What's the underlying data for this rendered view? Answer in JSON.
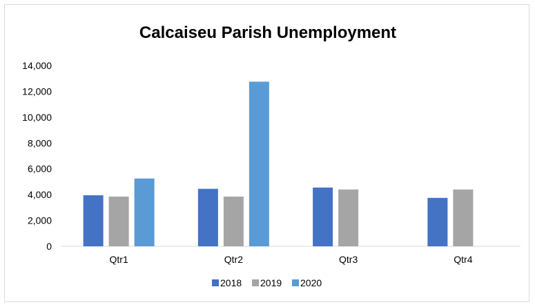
{
  "chart_data": {
    "type": "bar",
    "title": "Calcaiseu Parish Unemployment",
    "xlabel": "",
    "ylabel": "",
    "categories": [
      "Qtr1",
      "Qtr2",
      "Qtr3",
      "Qtr4"
    ],
    "series": [
      {
        "name": "2018",
        "color": "#4472c4",
        "values": [
          3950,
          4450,
          4550,
          3750
        ]
      },
      {
        "name": "2019",
        "color": "#a5a5a5",
        "values": [
          3850,
          3850,
          4400,
          4400
        ]
      },
      {
        "name": "2020",
        "color": "#5b9bd5",
        "values": [
          5250,
          12750,
          null,
          null
        ]
      }
    ],
    "ylim": [
      0,
      14000
    ],
    "yticks": [
      {
        "value": 0,
        "label": "0"
      },
      {
        "value": 2000,
        "label": "2,000"
      },
      {
        "value": 4000,
        "label": "4,000"
      },
      {
        "value": 6000,
        "label": "6,000"
      },
      {
        "value": 8000,
        "label": "8,000"
      },
      {
        "value": 10000,
        "label": "10,000"
      },
      {
        "value": 12000,
        "label": "12,000"
      },
      {
        "value": 14000,
        "label": "14,000"
      }
    ],
    "grid": false,
    "legend_position": "bottom"
  }
}
